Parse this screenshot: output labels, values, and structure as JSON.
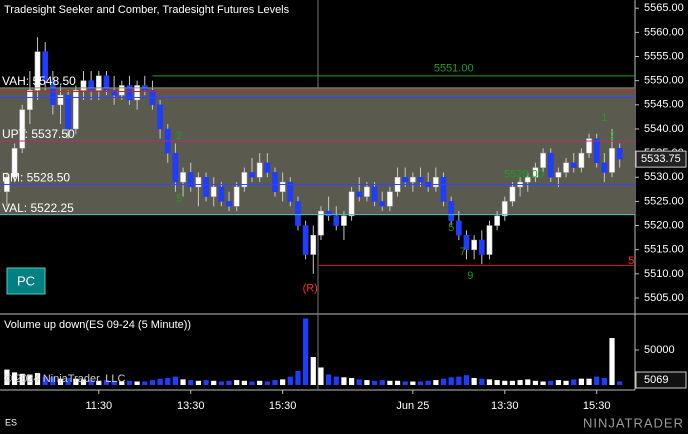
{
  "chart_data": {
    "type": "candlestick",
    "title": "Tradesight Seeker and Comber, Tradesight Futures Levels",
    "volume_title": "Volume up down(ES 09-24 (5 Minute))",
    "copyright": "© 2024 NinjaTrader, LLC",
    "instrument": "ES",
    "button": "PC",
    "logo": "NINJATRADER",
    "up_color": "#ffffff",
    "down_color": "#1f3dff",
    "value_area_color": "#5b5a4e",
    "xlim": [
      -0.9,
      82
    ],
    "xticks": [
      {
        "value": 12,
        "label": "11:30"
      },
      {
        "value": 24,
        "label": "13:30"
      },
      {
        "value": 36,
        "label": "15:30"
      },
      {
        "value": 53,
        "label": "Jun 25"
      },
      {
        "value": 65,
        "label": "13:30"
      },
      {
        "value": 77,
        "label": "15:30"
      }
    ],
    "ylim": [
      5502.1,
      5566.7
    ],
    "yticks": [
      {
        "value": 5505,
        "label": "5505.00"
      },
      {
        "value": 5510,
        "label": "5510.00"
      },
      {
        "value": 5515,
        "label": "5515.00"
      },
      {
        "value": 5520,
        "label": "5520.00"
      },
      {
        "value": 5525,
        "label": "5525.00"
      },
      {
        "value": 5530,
        "label": "5530.00"
      },
      {
        "value": 5535,
        "label": "5535.00"
      },
      {
        "value": 5540,
        "label": "5540.00"
      },
      {
        "value": 5545,
        "label": "5545.00"
      },
      {
        "value": 5550,
        "label": "5550.00"
      },
      {
        "value": 5555,
        "label": "5555.00"
      },
      {
        "value": 5560,
        "label": "5560.00"
      },
      {
        "value": 5565,
        "label": "5565.00"
      }
    ],
    "open": [
      5527,
      5530,
      5536,
      5544,
      5548,
      5556,
      5550,
      5545,
      5547,
      5540,
      5548,
      5550,
      5548,
      5551,
      5548,
      5547,
      5549,
      5546,
      5549,
      5548,
      5545,
      5540,
      5535,
      5529,
      5531,
      5528,
      5530,
      5526,
      5528,
      5525,
      5524,
      5528,
      5531,
      5530,
      5533,
      5531,
      5527,
      5529,
      5525,
      5520,
      5514,
      5518,
      5523,
      5522,
      5520,
      5522,
      5527,
      5526,
      5528,
      5525,
      5524,
      5527,
      5530,
      5529,
      5530,
      5529,
      5528,
      5530,
      5525,
      5521,
      5518,
      5515,
      5517,
      5514,
      5520,
      5522,
      5525,
      5528,
      5529,
      5530,
      5532,
      5535,
      5530,
      5531,
      5533,
      5532,
      5535,
      5538,
      5533,
      5531,
      5536
    ],
    "high": [
      5531,
      5537,
      5545,
      5552,
      5559,
      5558,
      5552,
      5549,
      5548,
      5549,
      5552,
      5552,
      5552,
      5552,
      5551,
      5550,
      5551,
      5550,
      5551,
      5550,
      5546,
      5541,
      5537,
      5532,
      5533,
      5531,
      5531,
      5530,
      5529,
      5527,
      5529,
      5532,
      5534,
      5535,
      5535,
      5532,
      5531,
      5530,
      5526,
      5521,
      5520,
      5524,
      5526,
      5524,
      5523,
      5528,
      5530,
      5529,
      5529,
      5527,
      5528,
      5532,
      5532,
      5531,
      5532,
      5531,
      5532,
      5531,
      5526,
      5523,
      5519,
      5518,
      5519,
      5521,
      5523,
      5526,
      5529,
      5530,
      5531,
      5533,
      5536,
      5536,
      5532,
      5534,
      5535,
      5536,
      5539,
      5539,
      5535,
      5540,
      5537
    ],
    "low": [
      5524,
      5529,
      5535,
      5541,
      5546,
      5548,
      5543,
      5541,
      5538,
      5539,
      5546,
      5546,
      5546,
      5547,
      5545,
      5546,
      5545,
      5544,
      5547,
      5544,
      5538,
      5533,
      5527,
      5526,
      5527,
      5524,
      5525,
      5524,
      5524,
      5523,
      5523,
      5527,
      5529,
      5529,
      5530,
      5526,
      5525,
      5524,
      5519,
      5513,
      5510,
      5517,
      5521,
      5519,
      5517,
      5521,
      5525,
      5525,
      5524,
      5523,
      5523,
      5526,
      5528,
      5527,
      5528,
      5527,
      5527,
      5524,
      5520,
      5517,
      5513,
      5513,
      5512,
      5513,
      5519,
      5521,
      5524,
      5526,
      5527,
      5529,
      5531,
      5529,
      5528,
      5530,
      5531,
      5531,
      5534,
      5532,
      5529,
      5530,
      5532
    ],
    "close": [
      5530,
      5536,
      5544,
      5548,
      5556,
      5550,
      5545,
      5547,
      5540,
      5548,
      5550,
      5548,
      5551,
      5548,
      5547,
      5549,
      5546,
      5549,
      5548,
      5545,
      5540,
      5535,
      5529,
      5531,
      5528,
      5530,
      5526,
      5528,
      5525,
      5524,
      5528,
      5531,
      5530,
      5533,
      5531,
      5527,
      5529,
      5525,
      5520,
      5514,
      5518,
      5523,
      5522,
      5520,
      5522,
      5527,
      5526,
      5528,
      5525,
      5524,
      5527,
      5530,
      5529,
      5530,
      5529,
      5528,
      5530,
      5525,
      5521,
      5518,
      5515,
      5517,
      5514,
      5520,
      5522,
      5525,
      5528,
      5529,
      5530,
      5532,
      5535,
      5530,
      5531,
      5533,
      5532,
      5535,
      5538,
      5533,
      5531,
      5536,
      5533.75
    ],
    "volume": [
      22000,
      18000,
      16000,
      15000,
      17000,
      12000,
      11000,
      9000,
      10000,
      9000,
      8000,
      7000,
      6000,
      7000,
      6000,
      5000,
      6000,
      5000,
      5000,
      7000,
      9000,
      10000,
      12000,
      8000,
      7000,
      6000,
      7000,
      6000,
      5000,
      6000,
      7000,
      6000,
      5000,
      6000,
      5000,
      7000,
      8000,
      12000,
      20000,
      95000,
      40000,
      25000,
      15000,
      12000,
      11000,
      10000,
      8000,
      7000,
      6000,
      7000,
      6000,
      6000,
      5000,
      5000,
      5000,
      6000,
      7000,
      9000,
      11000,
      12000,
      14000,
      10000,
      9000,
      8000,
      7000,
      6000,
      6000,
      7000,
      8000,
      6000,
      5000,
      6000,
      7000,
      6000,
      8000,
      9000,
      9000,
      12000,
      10000,
      67000,
      5069
    ],
    "volume_ylim": [
      0,
      98500
    ],
    "volume_yticks": [
      50000
    ],
    "levels": [
      {
        "label": "VAH: 5548.50",
        "value": 5548.5,
        "color": "#8a8a70"
      },
      {
        "label": "5551.00",
        "value": 5551,
        "color": "#1e9e1e",
        "start": 19
      },
      {
        "value": 5547.75,
        "color": "#cc2222"
      },
      {
        "value": 5546.5,
        "color": "#3344ff"
      },
      {
        "label": "UPT: 5537.50",
        "value": 5537.5,
        "color": "#b03070"
      },
      {
        "label": "PM: 5528.50",
        "value": 5528.5,
        "color": "#3344ff"
      },
      {
        "label": "VAL: 5522.25",
        "value": 5522.25,
        "color": "#33cccc"
      },
      {
        "value": 5511.75,
        "color": "#cc2222",
        "start": 40.6
      }
    ],
    "annotations": [
      {
        "text": "(R)",
        "x": 39.6,
        "y": 5506.9,
        "color": "#ff2a2a"
      },
      {
        "text": "5",
        "x": 81.5,
        "y": 5512.6,
        "color": "#ff2a2a"
      },
      {
        "text": "5529.00",
        "x": 67.5,
        "y": 5530.5,
        "color": "#1e9e1e"
      },
      {
        "text": "9",
        "x": 60.5,
        "y": 5509.5,
        "color": "#1e9e1e"
      },
      {
        "text": "7",
        "x": 59.5,
        "y": 5514.5,
        "color": "#1e9e1e"
      },
      {
        "text": "5",
        "x": 58,
        "y": 5519.5,
        "color": "#1e9e1e"
      },
      {
        "text": "1",
        "x": 78,
        "y": 5542.2,
        "color": "#1e9e1e"
      },
      {
        "text": "2",
        "x": 79,
        "y": 5538.5,
        "color": "#1e9e1e"
      },
      {
        "text": "2",
        "x": 22.5,
        "y": 5538.5,
        "color": "#1e9e1e"
      },
      {
        "text": "5",
        "x": 22.5,
        "y": 5525.5,
        "color": "#1e9e1e"
      }
    ]
  }
}
